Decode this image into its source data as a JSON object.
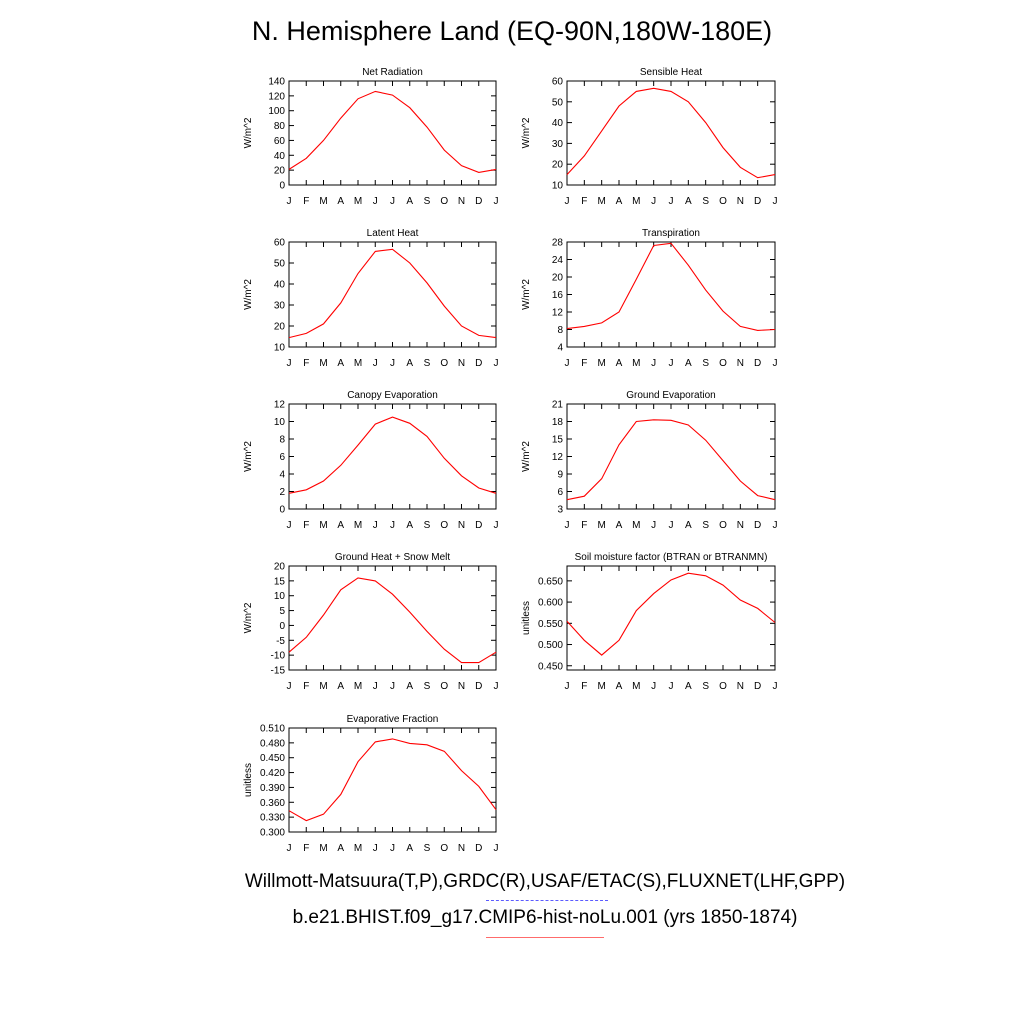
{
  "page_title": "N. Hemisphere Land (EQ-90N,180W-180E)",
  "footer": {
    "obs_label": "Willmott-Matsuura(T,P),GRDC(R),USAF/ETAC(S),FLUXNET(LHF,GPP)",
    "case_label": "b.e21.BHIST.f09_g17.CMIP6-hist-noLu.001 (yrs 1850-1874)"
  },
  "colors": {
    "model_line": "#ff0000",
    "obs_line": "#5b5bff",
    "axis": "#000000"
  },
  "months": [
    "J",
    "F",
    "M",
    "A",
    "M",
    "J",
    "J",
    "A",
    "S",
    "O",
    "N",
    "D",
    "J"
  ],
  "chart_data": [
    {
      "type": "line",
      "title": "Net Radiation",
      "ylabel": "W/m^2",
      "ylim": [
        0,
        140
      ],
      "yticks": [
        "0",
        "20",
        "40",
        "60",
        "80",
        "100",
        "120",
        "140"
      ],
      "values": [
        21,
        36,
        60,
        90,
        116,
        126,
        121,
        104,
        78,
        47,
        26,
        17,
        21
      ]
    },
    {
      "type": "line",
      "title": "Sensible Heat",
      "ylabel": "W/m^2",
      "ylim": [
        10,
        60
      ],
      "yticks": [
        "10",
        "20",
        "30",
        "40",
        "50",
        "60"
      ],
      "values": [
        15,
        24,
        36,
        48,
        55,
        56.5,
        55,
        50,
        40,
        28,
        18.5,
        13.5,
        15
      ]
    },
    {
      "type": "line",
      "title": "Latent Heat",
      "ylabel": "W/m^2",
      "ylim": [
        10,
        60
      ],
      "yticks": [
        "10",
        "20",
        "30",
        "40",
        "50",
        "60"
      ],
      "values": [
        14.5,
        16.5,
        21,
        31,
        45,
        55.5,
        56.5,
        50,
        40.5,
        29.5,
        20,
        15.5,
        14.5
      ]
    },
    {
      "type": "line",
      "title": "Transpiration",
      "ylabel": "W/m^2",
      "ylim": [
        4,
        28
      ],
      "yticks": [
        "4",
        "8",
        "12",
        "16",
        "20",
        "24",
        "28"
      ],
      "values": [
        8.2,
        8.7,
        9.5,
        12,
        19.5,
        27.2,
        27.7,
        22.7,
        17,
        12.2,
        8.7,
        7.8,
        8.0
      ]
    },
    {
      "type": "line",
      "title": "Canopy Evaporation",
      "ylabel": "W/m^2",
      "ylim": [
        0,
        12
      ],
      "yticks": [
        "0",
        "2",
        "4",
        "6",
        "8",
        "10",
        "12"
      ],
      "values": [
        1.8,
        2.2,
        3.2,
        5.0,
        7.3,
        9.7,
        10.5,
        9.8,
        8.3,
        5.8,
        3.8,
        2.4,
        1.8
      ]
    },
    {
      "type": "line",
      "title": "Ground Evaporation",
      "ylabel": "W/m^2",
      "ylim": [
        3,
        21
      ],
      "yticks": [
        "3",
        "6",
        "9",
        "12",
        "15",
        "18",
        "21"
      ],
      "values": [
        4.6,
        5.2,
        8.2,
        14.0,
        18.0,
        18.3,
        18.2,
        17.4,
        14.8,
        11.3,
        7.8,
        5.3,
        4.6
      ]
    },
    {
      "type": "line",
      "title": "Ground Heat + Snow Melt",
      "ylabel": "W/m^2",
      "ylim": [
        -15,
        20
      ],
      "yticks": [
        "-15",
        "-10",
        "-5",
        "0",
        "5",
        "10",
        "15",
        "20"
      ],
      "values": [
        -9,
        -4,
        3.5,
        12,
        16,
        15,
        10.5,
        4.5,
        -2,
        -8,
        -12.5,
        -12.5,
        -9
      ]
    },
    {
      "type": "line",
      "title": "Soil moisture factor (BTRAN or BTRANMN)",
      "ylabel": "unitless",
      "ylim": [
        0.44,
        0.685
      ],
      "yticks": [
        "0.450",
        "0.500",
        "0.550",
        "0.600",
        "0.650"
      ],
      "ytick_values": [
        0.45,
        0.5,
        0.55,
        0.6,
        0.65
      ],
      "values": [
        0.555,
        0.51,
        0.475,
        0.51,
        0.58,
        0.62,
        0.652,
        0.668,
        0.662,
        0.64,
        0.605,
        0.585,
        0.552
      ]
    },
    {
      "type": "line",
      "title": "Evaporative Fraction",
      "ylabel": "unitless",
      "ylim": [
        0.3,
        0.51
      ],
      "yticks": [
        "0.300",
        "0.330",
        "0.360",
        "0.390",
        "0.420",
        "0.450",
        "0.480",
        "0.510"
      ],
      "values": [
        0.343,
        0.323,
        0.336,
        0.376,
        0.442,
        0.482,
        0.488,
        0.479,
        0.476,
        0.463,
        0.424,
        0.392,
        0.345
      ]
    }
  ]
}
